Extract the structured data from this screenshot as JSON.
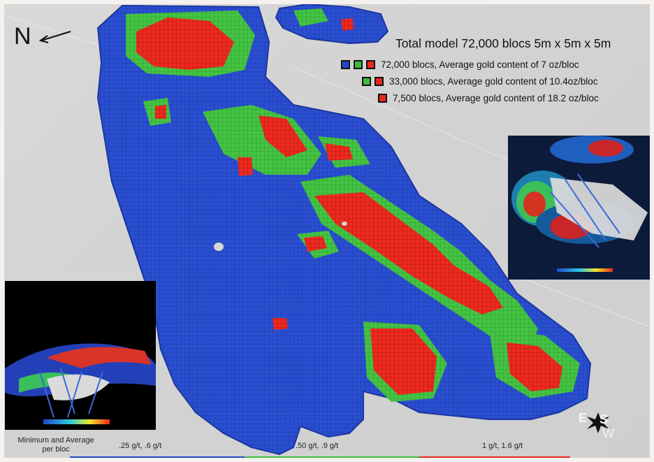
{
  "north": {
    "letter": "N"
  },
  "legend": {
    "title": "Total model 72,000 blocs 5m x 5m x 5m",
    "rows": [
      {
        "text": "72,000 blocs, Average gold content of 7 oz/bloc",
        "swatches": [
          "blue",
          "green",
          "red"
        ]
      },
      {
        "text": "33,000 blocs, Average gold content of 10.4oz/bloc",
        "swatches": [
          "green",
          "red"
        ]
      },
      {
        "text": "7,500  blocs, Average gold content of 18.2 oz/bloc",
        "swatches": [
          "red"
        ]
      }
    ]
  },
  "bottom": {
    "min_avg_label_1": "Minimum and Average",
    "min_avg_label_2": "per bloc",
    "blue_label": ".25 g/t, .6 g/t",
    "green_label": ".50 g/t, .9 g/t",
    "red_label": "1 g/t, 1.6 g/t"
  },
  "compass": {
    "e": "E",
    "s": "S",
    "w": "W"
  },
  "colors": {
    "blue": "#2347c8",
    "green": "#3dbd3a",
    "red": "#e8281e",
    "background": "#d6d6d6"
  }
}
